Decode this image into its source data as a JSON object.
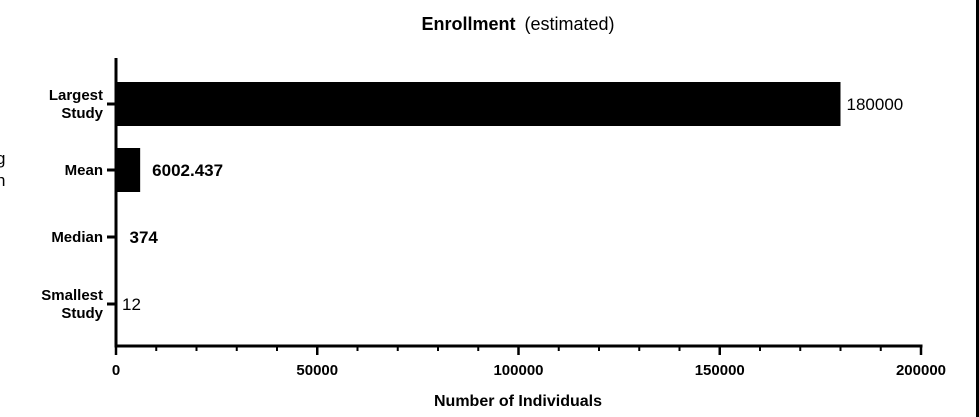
{
  "chart_data": {
    "type": "bar",
    "orientation": "horizontal",
    "title": "Enrollment",
    "subtitle": "(estimated)",
    "xlabel": "Number of Individuals",
    "ylabel": "",
    "xlim": [
      0,
      200000
    ],
    "x_ticks": [
      "0",
      "50000",
      "100000",
      "150000",
      "200000"
    ],
    "categories": [
      [
        "Largest",
        "Study"
      ],
      [
        "Mean"
      ],
      [
        "Median"
      ],
      [
        "Smallest",
        "Study"
      ]
    ],
    "values": [
      180000,
      6002.437,
      374,
      12
    ],
    "data_labels": [
      "180000",
      "6002.437",
      "374",
      "12"
    ],
    "data_label_bold": [
      false,
      true,
      true,
      false
    ],
    "colors": {
      "bar": "#000000",
      "axis": "#000000",
      "text": "#000000"
    },
    "grid": false,
    "legend": "none",
    "partial_left_text": [
      "g",
      "n"
    ]
  }
}
